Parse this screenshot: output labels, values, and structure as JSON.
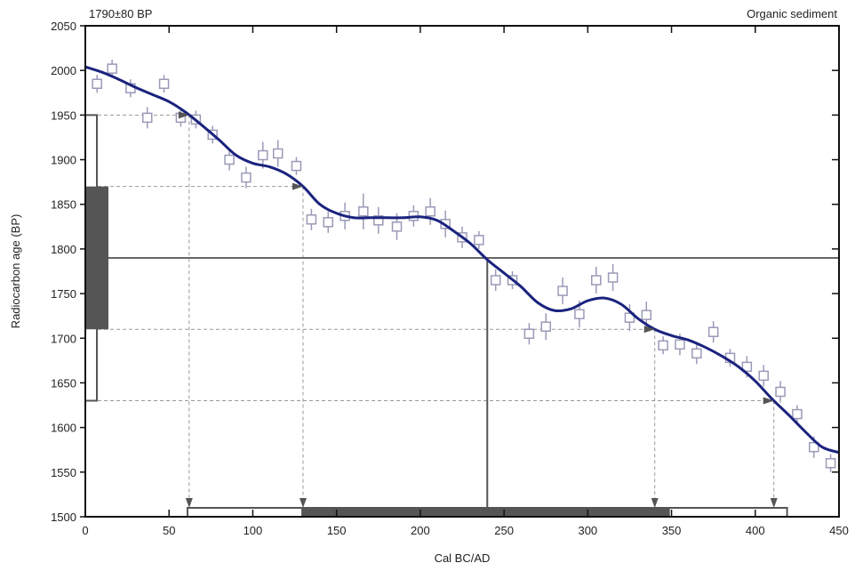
{
  "chart_data": {
    "type": "line",
    "title_left": "1790±80 BP",
    "title_right": "Organic sediment",
    "xlabel": "Cal BC/AD",
    "ylabel": "Radiocarbon age (BP)",
    "xlim": [
      0,
      450
    ],
    "ylim": [
      1500,
      2050
    ],
    "xticks": [
      "0",
      "50",
      "100",
      "150",
      "200",
      "250",
      "300",
      "350",
      "400",
      "450"
    ],
    "yticks": [
      "1500",
      "1550",
      "1600",
      "1650",
      "1700",
      "1750",
      "1800",
      "1850",
      "1900",
      "1950",
      "2000",
      "2050"
    ],
    "colors": {
      "curve": "#1a237e",
      "points": "#9a9ab8",
      "bars": "#555555",
      "guides": "#999999",
      "arrows": "#555555"
    },
    "calibration_curve": {
      "x": [
        0,
        10,
        20,
        30,
        40,
        50,
        60,
        70,
        80,
        90,
        100,
        110,
        120,
        130,
        140,
        150,
        160,
        170,
        180,
        190,
        200,
        210,
        220,
        230,
        240,
        250,
        260,
        270,
        280,
        290,
        300,
        310,
        320,
        330,
        340,
        350,
        360,
        370,
        380,
        390,
        400,
        410,
        420,
        430,
        440,
        450
      ],
      "y": [
        2004,
        1998,
        1990,
        1981,
        1973,
        1965,
        1953,
        1938,
        1922,
        1905,
        1896,
        1892,
        1884,
        1870,
        1850,
        1840,
        1835,
        1835,
        1835,
        1835,
        1836,
        1832,
        1820,
        1806,
        1788,
        1773,
        1758,
        1740,
        1731,
        1733,
        1742,
        1745,
        1738,
        1722,
        1710,
        1703,
        1698,
        1690,
        1680,
        1668,
        1652,
        1632,
        1614,
        1595,
        1578,
        1572
      ]
    },
    "data_points": {
      "x": [
        7,
        16,
        27,
        37,
        47,
        57,
        66,
        76,
        86,
        96,
        106,
        115,
        126,
        135,
        145,
        155,
        166,
        175,
        186,
        196,
        206,
        215,
        225,
        235,
        245,
        255,
        265,
        275,
        285,
        295,
        305,
        315,
        325,
        335,
        345,
        355,
        365,
        375,
        385,
        395,
        405,
        415,
        425,
        435,
        445
      ],
      "y": [
        1985,
        2002,
        1980,
        1947,
        1985,
        1947,
        1945,
        1928,
        1900,
        1880,
        1905,
        1907,
        1893,
        1833,
        1830,
        1837,
        1842,
        1832,
        1825,
        1837,
        1842,
        1828,
        1813,
        1810,
        1765,
        1765,
        1705,
        1713,
        1753,
        1727,
        1765,
        1768,
        1723,
        1726,
        1692,
        1693,
        1683,
        1707,
        1678,
        1668,
        1658,
        1640,
        1615,
        1578,
        1560
      ],
      "err": [
        10,
        10,
        10,
        12,
        10,
        10,
        10,
        10,
        12,
        12,
        15,
        15,
        10,
        12,
        12,
        15,
        20,
        15,
        15,
        12,
        15,
        15,
        12,
        10,
        12,
        10,
        12,
        15,
        15,
        15,
        15,
        15,
        15,
        15,
        10,
        12,
        12,
        12,
        10,
        12,
        12,
        12,
        10,
        12,
        10
      ]
    },
    "measured_age": 1790,
    "sigma1": [
      1710,
      1870
    ],
    "sigma2": [
      1630,
      1950
    ],
    "intercept_x": 240,
    "calibrated_range_1sigma": [
      129,
      349
    ],
    "calibrated_range_2sigma": [
      61,
      419
    ]
  }
}
